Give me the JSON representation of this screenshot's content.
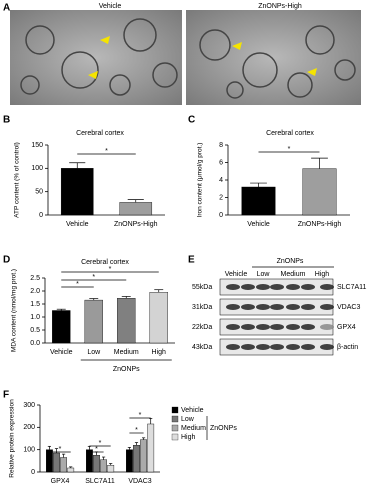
{
  "panel_a": {
    "label": "A",
    "images": [
      {
        "title": "Vehicle"
      },
      {
        "title": "ZnONPs-High"
      }
    ]
  },
  "chart_data": [
    {
      "type": "bar",
      "panel": "B",
      "title": "Cerebral cortex",
      "y_label": "ATP content (% of control)",
      "categories": [
        "Vehicle",
        "ZnONPs-High"
      ],
      "values": [
        100,
        27
      ],
      "errors": [
        12,
        6
      ],
      "colors": [
        "#000000",
        "#9e9e9e"
      ],
      "ylim": [
        0,
        150
      ],
      "yticks": [
        0,
        50,
        100,
        150
      ],
      "annotations": [
        "*"
      ]
    },
    {
      "type": "bar",
      "panel": "C",
      "title": "Cerebral cortex",
      "y_label": "Iron content (μmol/g prot.)",
      "categories": [
        "Vehicle",
        "ZnONPs-High"
      ],
      "values": [
        3.2,
        5.3
      ],
      "errors": [
        0.45,
        1.2
      ],
      "colors": [
        "#000000",
        "#9e9e9e"
      ],
      "ylim": [
        0,
        8
      ],
      "yticks": [
        0,
        2,
        4,
        6,
        8
      ],
      "annotations": [
        "*"
      ]
    },
    {
      "type": "bar",
      "panel": "D",
      "title": "Cerebral cortex",
      "y_label": "MDA content (nmol/mg prot.)",
      "categories": [
        "Vehicle",
        "Low",
        "Medium",
        "High"
      ],
      "values": [
        1.25,
        1.65,
        1.72,
        1.95
      ],
      "errors": [
        0.05,
        0.06,
        0.07,
        0.1
      ],
      "colors": [
        "#000000",
        "#9a9a9a",
        "#808080",
        "#d3d3d3"
      ],
      "group_label": "ZnONPs",
      "ylim": [
        0,
        2.5
      ],
      "yticks": [
        {
          "value": 0,
          "label": "0.0"
        },
        {
          "value": 0.5,
          "label": "0.5"
        },
        {
          "value": 1,
          "label": "1.0"
        },
        {
          "value": 1.5,
          "label": "1.5"
        },
        {
          "value": 2,
          "label": "2.0"
        },
        {
          "value": 2.5,
          "label": "2.5"
        }
      ],
      "annotations": [
        "*",
        "*",
        "*"
      ]
    },
    {
      "type": "bar",
      "panel": "F",
      "y_label": "Relative protein expression",
      "categories": [
        "GPX4",
        "SLC7A11",
        "VDAC3"
      ],
      "series": [
        {
          "name": "Vehicle",
          "color": "#000000",
          "values": [
            100,
            100,
            100
          ],
          "errors": [
            15,
            15,
            10
          ]
        },
        {
          "name": "Low",
          "color": "#777777",
          "values": [
            85,
            75,
            120
          ],
          "errors": [
            20,
            15,
            12
          ]
        },
        {
          "name": "Medium",
          "color": "#aaaaaa",
          "values": [
            65,
            55,
            145
          ],
          "errors": [
            15,
            12,
            8
          ]
        },
        {
          "name": "High",
          "color": "#dddddd",
          "values": [
            18,
            30,
            215
          ],
          "errors": [
            5,
            8,
            25
          ]
        }
      ],
      "legend_group": "ZnONPs",
      "ylim": [
        0,
        300
      ],
      "yticks": [
        0,
        100,
        200,
        300
      ],
      "annotations": [
        "*",
        "*",
        "*",
        "*",
        "*"
      ]
    }
  ],
  "panel_e": {
    "label": "E",
    "group_label": "ZnONPs",
    "lanes": [
      "Vehicle",
      "Low",
      "Medium",
      "High"
    ],
    "rows": [
      {
        "weight": "55kDa",
        "protein": "SLC7A11"
      },
      {
        "weight": "31kDa",
        "protein": "VDAC3"
      },
      {
        "weight": "22kDa",
        "protein": "GPX4"
      },
      {
        "weight": "43kDa",
        "protein": "β-actin"
      }
    ]
  }
}
